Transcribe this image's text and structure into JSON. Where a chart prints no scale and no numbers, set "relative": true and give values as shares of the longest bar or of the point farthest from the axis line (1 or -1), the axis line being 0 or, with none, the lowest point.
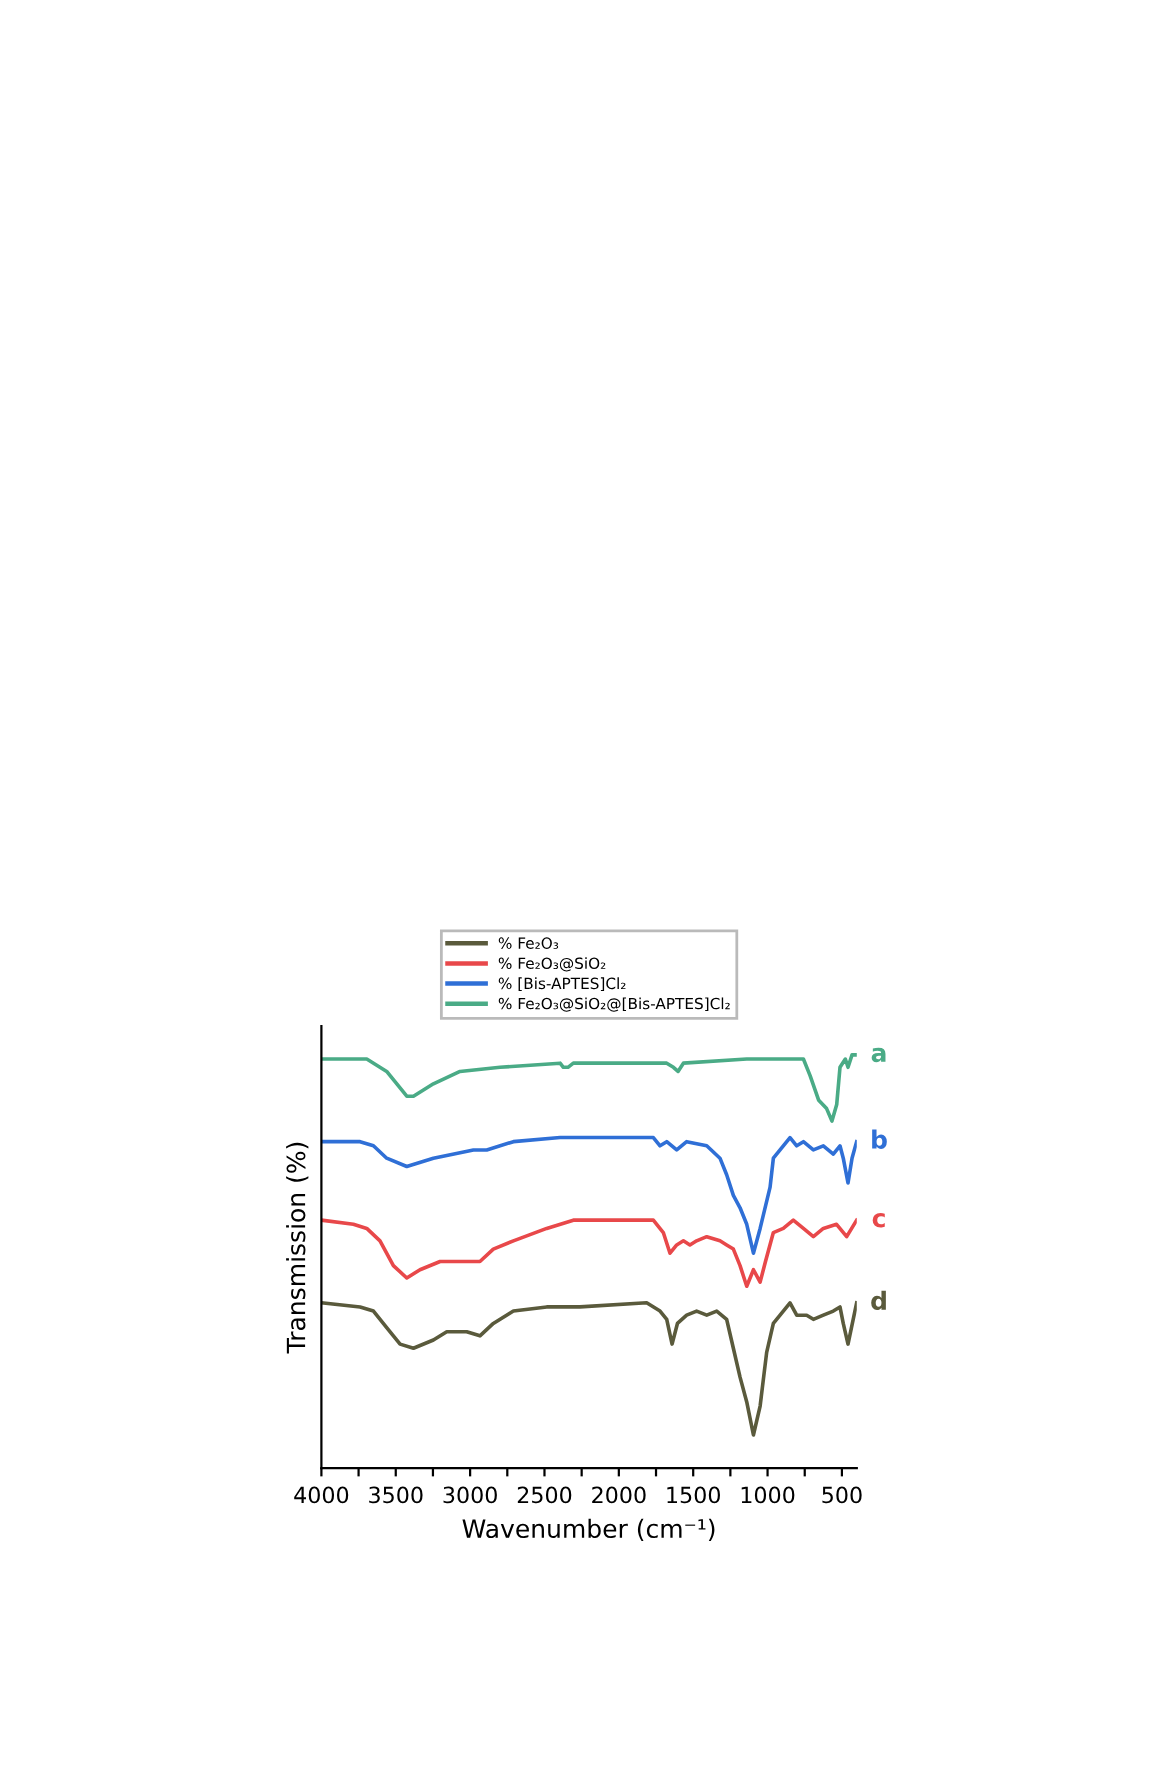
{
  "chart_data": {
    "type": "line",
    "relative": true,
    "xlabel": "Wavenumber (cm⁻¹)",
    "ylabel": "Transmission (%)",
    "xlim": [
      4000,
      400
    ],
    "xticks": [
      4000,
      {
        "value": 3750,
        "label": null
      },
      3500,
      {
        "value": 3250,
        "label": null
      },
      3000,
      {
        "value": 2750,
        "label": null
      },
      2500,
      {
        "value": 2250,
        "label": null
      },
      2000,
      {
        "value": 1750,
        "label": null
      },
      1500,
      {
        "value": 1250,
        "label": null
      },
      1000,
      {
        "value": 750,
        "label": null
      },
      500
    ],
    "tick_labels": "x",
    "grid": false,
    "legend": "top",
    "marker": "none",
    "line_style": "solid",
    "series": [
      {
        "name": "% Fe₂O₃",
        "color": "#5a5a3c",
        "x": [
          4000,
          3740,
          3650,
          3561,
          3471,
          3381,
          3247,
          3157,
          3023,
          2934,
          2844,
          2709,
          2485,
          2261,
          1813,
          1723,
          1678,
          1642,
          1606,
          1544,
          1477,
          1409,
          1342,
          1275,
          1230,
          1185,
          1140,
          1095,
          1050,
          1006,
          961,
          916,
          849,
          804,
          737,
          692,
          625,
          558,
          513,
          491,
          459,
          401
        ],
        "values": [
          0.4,
          0.39,
          0.38,
          0.34,
          0.3,
          0.29,
          0.31,
          0.33,
          0.33,
          0.32,
          0.35,
          0.38,
          0.39,
          0.39,
          0.4,
          0.38,
          0.36,
          0.3,
          0.35,
          0.37,
          0.38,
          0.37,
          0.38,
          0.36,
          0.29,
          0.22,
          0.16,
          0.08,
          0.15,
          0.28,
          0.35,
          0.37,
          0.4,
          0.37,
          0.37,
          0.36,
          0.37,
          0.38,
          0.39,
          0.35,
          0.3,
          0.4
        ]
      },
      {
        "name": "% Fe₂O₃@SiO₂",
        "color": "#e8484a",
        "x": [
          4000,
          3785,
          3695,
          3606,
          3516,
          3426,
          3337,
          3202,
          3068,
          2934,
          2844,
          2709,
          2485,
          2306,
          1768,
          1701,
          1656,
          1611,
          1566,
          1522,
          1477,
          1409,
          1320,
          1275,
          1230,
          1185,
          1140,
          1095,
          1050,
          1014,
          961,
          894,
          827,
          759,
          692,
          625,
          536,
          468,
          401
        ],
        "values": [
          0.6,
          0.59,
          0.58,
          0.55,
          0.49,
          0.46,
          0.48,
          0.5,
          0.5,
          0.5,
          0.53,
          0.55,
          0.58,
          0.6,
          0.6,
          0.57,
          0.52,
          0.54,
          0.55,
          0.54,
          0.55,
          0.56,
          0.55,
          0.54,
          0.53,
          0.49,
          0.44,
          0.48,
          0.45,
          0.5,
          0.57,
          0.58,
          0.6,
          0.58,
          0.56,
          0.58,
          0.59,
          0.56,
          0.6
        ]
      },
      {
        "name": "% [Bis-APTES]Cl₂",
        "color": "#2f6fd6",
        "x": [
          4000,
          3740,
          3650,
          3561,
          3426,
          3247,
          2978,
          2888,
          2709,
          2395,
          1768,
          1723,
          1678,
          1611,
          1544,
          1409,
          1320,
          1275,
          1230,
          1185,
          1140,
          1095,
          1050,
          983,
          961,
          916,
          849,
          804,
          759,
          692,
          625,
          558,
          513,
          491,
          459,
          432,
          401
        ],
        "values": [
          0.79,
          0.79,
          0.78,
          0.75,
          0.73,
          0.75,
          0.77,
          0.77,
          0.79,
          0.8,
          0.8,
          0.78,
          0.79,
          0.77,
          0.79,
          0.78,
          0.75,
          0.71,
          0.66,
          0.63,
          0.59,
          0.52,
          0.58,
          0.68,
          0.75,
          0.77,
          0.8,
          0.78,
          0.79,
          0.77,
          0.78,
          0.76,
          0.78,
          0.75,
          0.69,
          0.75,
          0.79
        ]
      },
      {
        "name": "% Fe₂O₃@SiO₂@[Bis-APTES]Cl₂",
        "color": "#4aab86",
        "x": [
          4000,
          3695,
          3561,
          3426,
          3381,
          3247,
          3068,
          2799,
          2395,
          2373,
          2342,
          2306,
          2037,
          1678,
          1633,
          1602,
          1566,
          1140,
          782,
          759,
          714,
          656,
          603,
          567,
          535,
          513,
          477,
          459,
          432,
          401
        ],
        "values": [
          0.99,
          0.99,
          0.96,
          0.9,
          0.9,
          0.93,
          0.96,
          0.97,
          0.98,
          0.97,
          0.97,
          0.98,
          0.98,
          0.98,
          0.97,
          0.96,
          0.98,
          0.99,
          0.99,
          0.99,
          0.95,
          0.89,
          0.87,
          0.84,
          0.88,
          0.97,
          0.99,
          0.97,
          1.0,
          1.0
        ]
      }
    ],
    "annotations": [
      "a",
      "b",
      "c",
      "d"
    ]
  }
}
